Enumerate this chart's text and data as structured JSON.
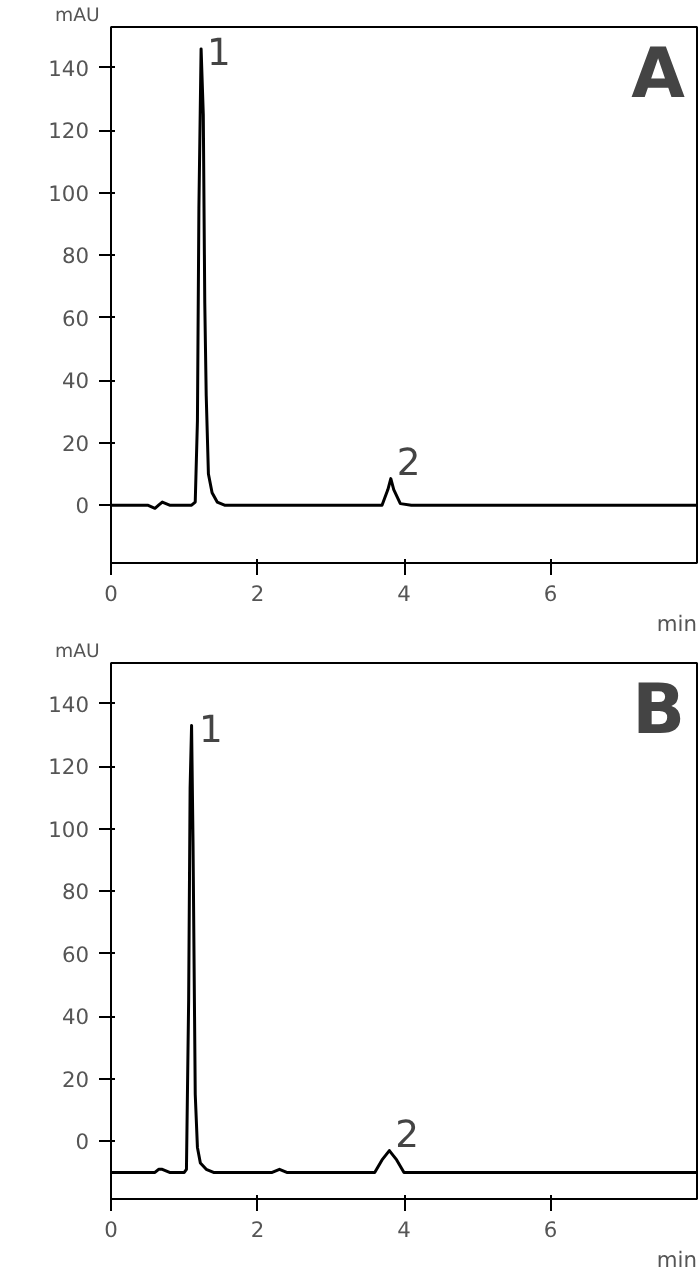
{
  "chart_data": [
    {
      "type": "line",
      "title": "A",
      "xlabel": "min",
      "ylabel": "mAU",
      "xlim": [
        0,
        8
      ],
      "ylim": [
        -18.5,
        153
      ],
      "xticks": [
        0,
        2,
        4,
        6
      ],
      "yticks": [
        0,
        20,
        40,
        60,
        80,
        100,
        120,
        140
      ],
      "grid": false,
      "series": [
        {
          "color": "#000000",
          "x": [
            0,
            0.5,
            0.6,
            0.65,
            0.7,
            0.8,
            1.1,
            1.15,
            1.18,
            1.2,
            1.23,
            1.26,
            1.28,
            1.3,
            1.33,
            1.38,
            1.45,
            1.55,
            1.7,
            2,
            3.6,
            3.7,
            3.78,
            3.82,
            3.86,
            3.95,
            4.1,
            6,
            8
          ],
          "values": [
            0,
            0,
            -1,
            0,
            1,
            0,
            0,
            1,
            27,
            95,
            146,
            125,
            65,
            35,
            10,
            4,
            1,
            0,
            0,
            0,
            0,
            0,
            5,
            8.5,
            5,
            0.5,
            0,
            0,
            0
          ]
        }
      ],
      "annotations": [
        {
          "text": "1",
          "x": 1.23,
          "y": 146
        },
        {
          "text": "2",
          "x": 3.82,
          "y": 8.5
        }
      ]
    },
    {
      "type": "line",
      "title": "B",
      "xlabel": "min",
      "ylabel": "mAU",
      "xlim": [
        0,
        8
      ],
      "ylim": [
        -18.5,
        153
      ],
      "xticks": [
        0,
        2,
        4,
        6
      ],
      "yticks": [
        0,
        20,
        40,
        60,
        80,
        100,
        120,
        140
      ],
      "grid": false,
      "series": [
        {
          "color": "#000000",
          "x": [
            0,
            0.6,
            0.65,
            0.7,
            0.8,
            1.0,
            1.03,
            1.06,
            1.08,
            1.1,
            1.12,
            1.15,
            1.18,
            1.22,
            1.3,
            1.4,
            1.5,
            2.0,
            2.2,
            2.3,
            2.4,
            3.6,
            3.7,
            3.8,
            3.9,
            4.0,
            8
          ],
          "values": [
            -10,
            -10,
            -9,
            -9,
            -10,
            -10,
            -9,
            45,
            113,
            133,
            95,
            15,
            -2,
            -7,
            -9,
            -10,
            -10,
            -10,
            -10,
            -9,
            -10,
            -10,
            -6,
            -3,
            -6,
            -10,
            -10
          ]
        }
      ],
      "annotations": [
        {
          "text": "1",
          "x": 1.12,
          "y": 133
        },
        {
          "text": "2",
          "x": 3.8,
          "y": -3
        }
      ]
    }
  ]
}
